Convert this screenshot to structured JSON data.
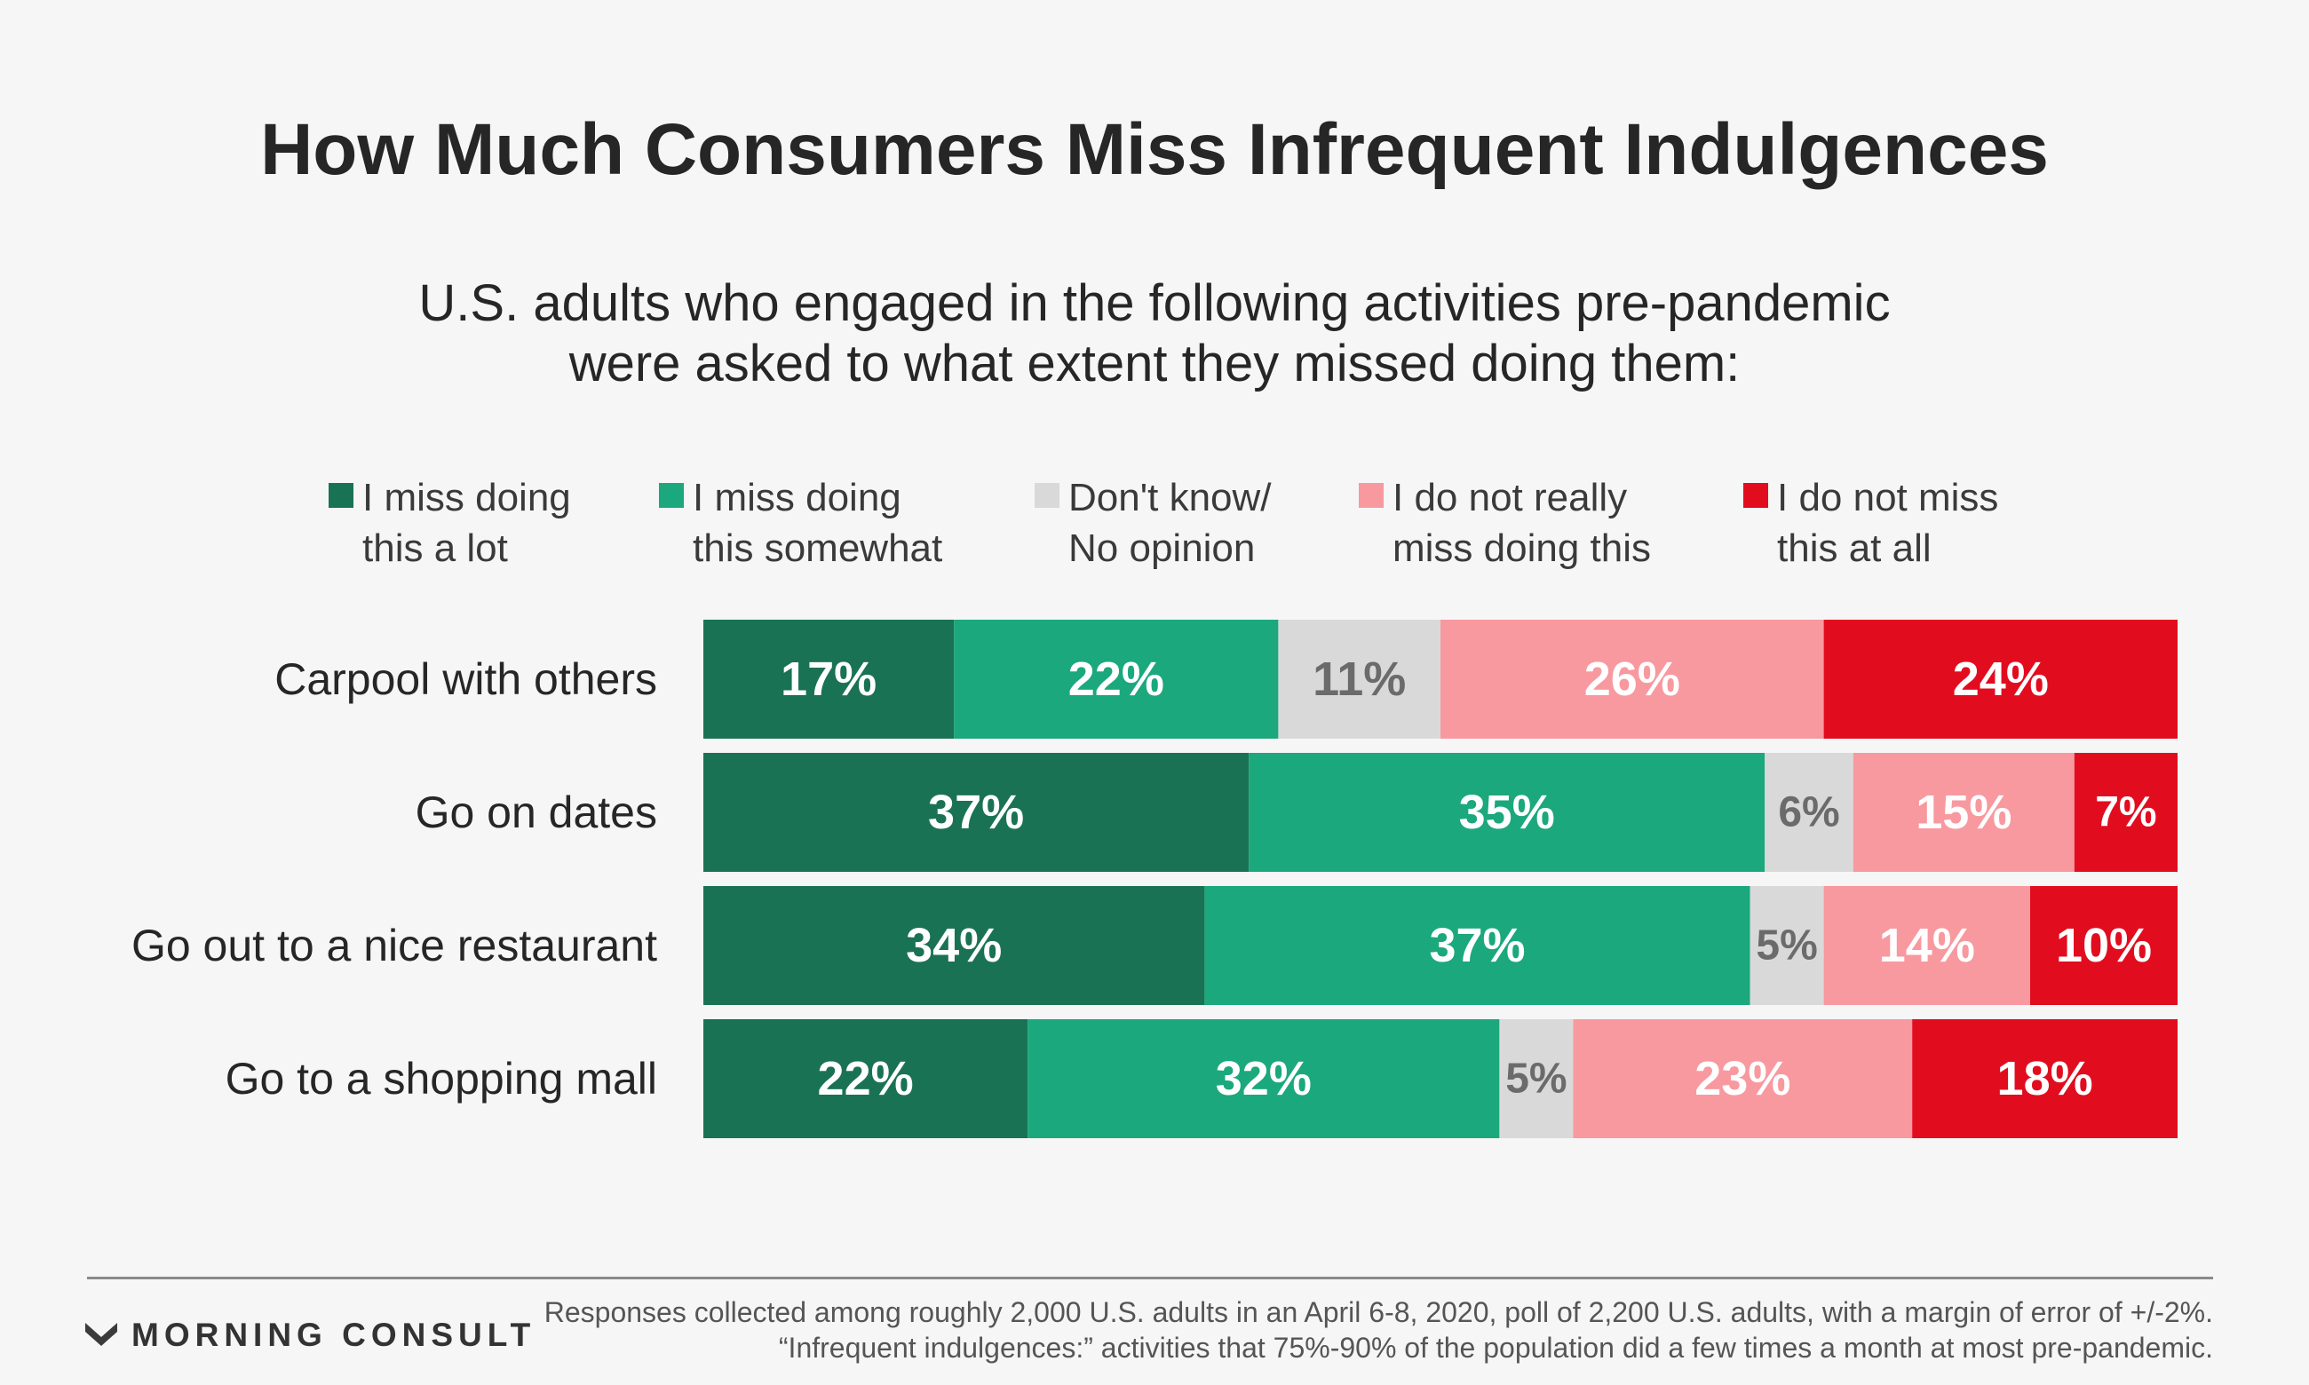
{
  "chart_data": {
    "type": "bar",
    "orientation": "horizontal",
    "stacked": true,
    "title": "How Much Consumers Miss Infrequent Indulgences",
    "subtitle": "U.S. adults who engaged in the following activities pre-pandemic\nwere asked to what extent they missed doing them:",
    "categories": [
      "Carpool with others",
      "Go on dates",
      "Go out to a nice restaurant",
      "Go to a shopping mall"
    ],
    "series": [
      {
        "name": "I miss doing\nthis a lot",
        "color": "#1a7254",
        "label_color": "#ffffff",
        "values": [
          17,
          37,
          34,
          22
        ]
      },
      {
        "name": "I miss doing\nthis somewhat",
        "color": "#1ba87c",
        "label_color": "#ffffff",
        "values": [
          22,
          35,
          37,
          32
        ]
      },
      {
        "name": "Don't know/\nNo opinion",
        "color": "#d9d9d9",
        "label_color": "#6b6b6b",
        "values": [
          11,
          6,
          5,
          5
        ]
      },
      {
        "name": "I do not really\nmiss doing this",
        "color": "#f8999f",
        "label_color": "#ffffff",
        "values": [
          26,
          15,
          14,
          23
        ]
      },
      {
        "name": "I do not miss\nthis at all",
        "color": "#e10d1f",
        "label_color": "#ffffff",
        "values": [
          24,
          7,
          10,
          18
        ]
      }
    ],
    "value_suffix": "%",
    "xlim": [
      0,
      100
    ],
    "legend_position": "top",
    "grid": false
  },
  "footer": {
    "brand": "MORNING CONSULT",
    "note": "Responses collected among roughly 2,000 U.S. adults in an April 6-8, 2020, poll of 2,200 U.S. adults, with a margin of error of +/-2%. “Infrequent indulgences:” activities that 75%-90% of the population did a few times a month at most pre-pandemic."
  }
}
